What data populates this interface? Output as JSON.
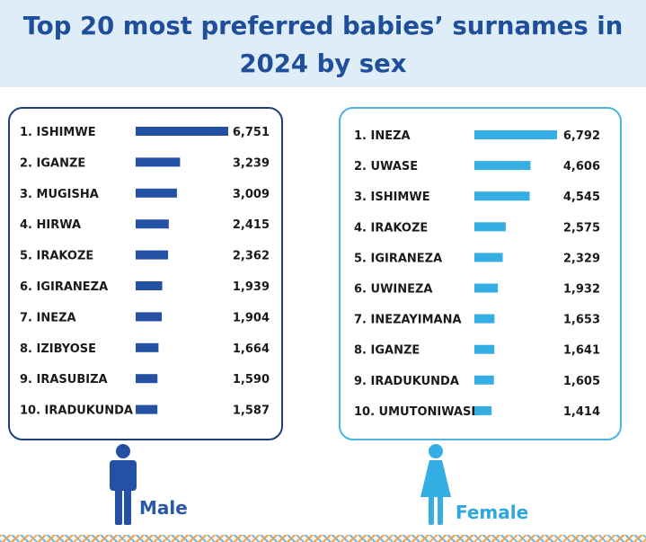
{
  "title": "Top 20 most preferred babies’ surnames in\n2024 by sex",
  "colors": {
    "male": "#2451a3",
    "female": "#35aee3",
    "title": "#1f4e9a"
  },
  "icons": {
    "male": "male-person-icon",
    "female": "female-person-icon"
  },
  "chart_data": [
    {
      "type": "bar",
      "orientation": "horizontal",
      "title": "",
      "legend": "Male",
      "categories": [
        "1. ISHIMWE",
        "2. IGANZE",
        "3. MUGISHA",
        "4. HIRWA",
        "5. IRAKOZE",
        "6. IGIRANEZA",
        "7. INEZA",
        "8. IZIBYOSE",
        "9. IRASUBIZA",
        "10. IRADUKUNDA"
      ],
      "values": [
        6751,
        3239,
        3009,
        2415,
        2362,
        1939,
        1904,
        1664,
        1590,
        1587
      ],
      "value_labels": [
        "6,751",
        "3,239",
        "3,009",
        "2,415",
        "2,362",
        "1,939",
        "1,904",
        "1,664",
        "1,590",
        "1,587"
      ],
      "xlim": [
        0,
        6751
      ],
      "grid": false
    },
    {
      "type": "bar",
      "orientation": "horizontal",
      "title": "",
      "legend": "Female",
      "categories": [
        "1. INEZA",
        "2. UWASE",
        "3. ISHIMWE",
        "4. IRAKOZE",
        "5. IGIRANEZA",
        "6. UWINEZA",
        "7. INEZAYIMANA",
        "8. IGANZE",
        "9. IRADUKUNDA",
        "10. UMUTONIWASE"
      ],
      "values": [
        6792,
        4606,
        4545,
        2575,
        2329,
        1932,
        1653,
        1641,
        1605,
        1414
      ],
      "value_labels": [
        "6,792",
        "4,606",
        "4,545",
        "2,575",
        "2,329",
        "1,932",
        "1,653",
        "1,641",
        "1,605",
        "1,414"
      ],
      "xlim": [
        0,
        6792
      ],
      "grid": false
    }
  ]
}
